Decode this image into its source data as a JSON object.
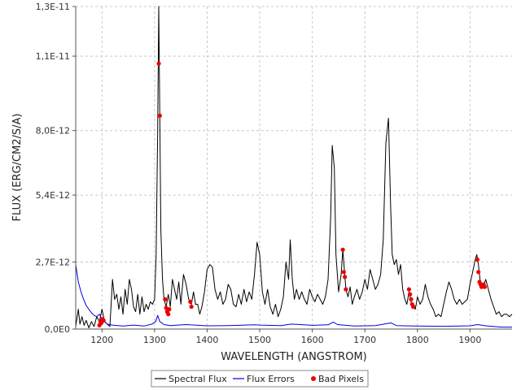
{
  "chart_data": {
    "type": "line",
    "xlabel": "WAVELENGTH (ANGSTROM)",
    "ylabel": "FLUX (ERG/CM2/S/A)",
    "xlim": [
      1150,
      1980
    ],
    "ylim": [
      0,
      1.3e-11
    ],
    "x_ticks": [
      1200,
      1300,
      1400,
      1500,
      1600,
      1700,
      1800,
      1900
    ],
    "x_tick_labels": [
      "1200",
      "1300",
      "1400",
      "1500",
      "1600",
      "1700",
      "1800",
      "1900"
    ],
    "y_ticks": [
      0,
      2.7e-12,
      5.4e-12,
      8e-12,
      1.1e-11,
      1.3e-11
    ],
    "y_tick_labels": [
      "0,0E0",
      "2,7E-12",
      "5,4E-12",
      "8,0E-12",
      "1,1E-11",
      "1,3E-11"
    ],
    "grid": true,
    "legend_position": "bottom-center",
    "series": [
      {
        "name": "Spectral Flux",
        "style": "line",
        "color": "#000000",
        "points": [
          [
            1150,
            1e-13
          ],
          [
            1155,
            8e-13
          ],
          [
            1158,
            2e-13
          ],
          [
            1162,
            5e-13
          ],
          [
            1166,
            1.5e-13
          ],
          [
            1170,
            3.5e-13
          ],
          [
            1175,
            5e-14
          ],
          [
            1180,
            3e-13
          ],
          [
            1185,
            1e-13
          ],
          [
            1190,
            5e-13
          ],
          [
            1195,
            3e-13
          ],
          [
            1200,
            8e-13
          ],
          [
            1205,
            3e-13
          ],
          [
            1210,
            2e-13
          ],
          [
            1215,
            1e-13
          ],
          [
            1220,
            2e-12
          ],
          [
            1224,
            1.2e-12
          ],
          [
            1228,
            1.4e-12
          ],
          [
            1232,
            8e-13
          ],
          [
            1236,
            1.3e-12
          ],
          [
            1240,
            6e-13
          ],
          [
            1244,
            1.6e-12
          ],
          [
            1248,
            1e-12
          ],
          [
            1252,
            2e-12
          ],
          [
            1256,
            1.6e-12
          ],
          [
            1260,
            9e-13
          ],
          [
            1264,
            7e-13
          ],
          [
            1268,
            1.4e-12
          ],
          [
            1272,
            6e-13
          ],
          [
            1276,
            1.3e-12
          ],
          [
            1280,
            7e-13
          ],
          [
            1284,
            1e-12
          ],
          [
            1288,
            8e-13
          ],
          [
            1292,
            1.1e-12
          ],
          [
            1296,
            1e-12
          ],
          [
            1300,
            1.2e-12
          ],
          [
            1303,
            3e-12
          ],
          [
            1306,
            8e-12
          ],
          [
            1308,
            1.3e-11
          ],
          [
            1310,
            8.5e-12
          ],
          [
            1312,
            4e-12
          ],
          [
            1315,
            2e-12
          ],
          [
            1318,
            1.2e-12
          ],
          [
            1322,
            9e-13
          ],
          [
            1326,
            1.4e-12
          ],
          [
            1330,
            9e-13
          ],
          [
            1334,
            2e-12
          ],
          [
            1338,
            1.6e-12
          ],
          [
            1342,
            1.2e-12
          ],
          [
            1346,
            1.9e-12
          ],
          [
            1350,
            1e-12
          ],
          [
            1355,
            2.2e-12
          ],
          [
            1360,
            1.8e-12
          ],
          [
            1365,
            1.2e-12
          ],
          [
            1370,
            1e-12
          ],
          [
            1374,
            1.5e-12
          ],
          [
            1378,
            1e-12
          ],
          [
            1382,
            1e-12
          ],
          [
            1386,
            6e-13
          ],
          [
            1390,
            9e-13
          ],
          [
            1395,
            1.5e-12
          ],
          [
            1400,
            2.4e-12
          ],
          [
            1405,
            2.6e-12
          ],
          [
            1410,
            2.5e-12
          ],
          [
            1415,
            1.6e-12
          ],
          [
            1420,
            1.2e-12
          ],
          [
            1425,
            1.5e-12
          ],
          [
            1430,
            1e-12
          ],
          [
            1435,
            1.2e-12
          ],
          [
            1440,
            1.8e-12
          ],
          [
            1445,
            1.6e-12
          ],
          [
            1450,
            1e-12
          ],
          [
            1455,
            9e-13
          ],
          [
            1460,
            1.4e-12
          ],
          [
            1465,
            1e-12
          ],
          [
            1470,
            1.6e-12
          ],
          [
            1475,
            1.1e-12
          ],
          [
            1480,
            1.5e-12
          ],
          [
            1485,
            1.2e-12
          ],
          [
            1490,
            2.2e-12
          ],
          [
            1495,
            3.5e-12
          ],
          [
            1500,
            3e-12
          ],
          [
            1505,
            1.5e-12
          ],
          [
            1510,
            1e-12
          ],
          [
            1515,
            1.6e-12
          ],
          [
            1520,
            9e-13
          ],
          [
            1525,
            6e-13
          ],
          [
            1530,
            1e-12
          ],
          [
            1535,
            5e-13
          ],
          [
            1540,
            8e-13
          ],
          [
            1545,
            1.3e-12
          ],
          [
            1550,
            2.7e-12
          ],
          [
            1555,
            2e-12
          ],
          [
            1558,
            3.6e-12
          ],
          [
            1562,
            2e-12
          ],
          [
            1566,
            1.2e-12
          ],
          [
            1570,
            1.6e-12
          ],
          [
            1575,
            1.2e-12
          ],
          [
            1580,
            1.5e-12
          ],
          [
            1585,
            1.2e-12
          ],
          [
            1590,
            1e-12
          ],
          [
            1595,
            1.6e-12
          ],
          [
            1600,
            1.3e-12
          ],
          [
            1605,
            1.1e-12
          ],
          [
            1610,
            1.4e-12
          ],
          [
            1615,
            1.2e-12
          ],
          [
            1620,
            1e-12
          ],
          [
            1625,
            1.3e-12
          ],
          [
            1630,
            2e-12
          ],
          [
            1635,
            4.5e-12
          ],
          [
            1638,
            7.4e-12
          ],
          [
            1642,
            6.5e-12
          ],
          [
            1645,
            3e-12
          ],
          [
            1650,
            1.5e-12
          ],
          [
            1655,
            2.2e-12
          ],
          [
            1658,
            3.2e-12
          ],
          [
            1661,
            2.4e-12
          ],
          [
            1664,
            1.6e-12
          ],
          [
            1668,
            1.3e-12
          ],
          [
            1672,
            1.7e-12
          ],
          [
            1676,
            1e-12
          ],
          [
            1680,
            1.3e-12
          ],
          [
            1685,
            1.6e-12
          ],
          [
            1690,
            1.2e-12
          ],
          [
            1695,
            1.5e-12
          ],
          [
            1700,
            2e-12
          ],
          [
            1705,
            1.6e-12
          ],
          [
            1710,
            2.4e-12
          ],
          [
            1715,
            2e-12
          ],
          [
            1720,
            1.6e-12
          ],
          [
            1725,
            1.8e-12
          ],
          [
            1730,
            2.2e-12
          ],
          [
            1735,
            3.6e-12
          ],
          [
            1740,
            7.5e-12
          ],
          [
            1745,
            8.5e-12
          ],
          [
            1749,
            5e-12
          ],
          [
            1752,
            3e-12
          ],
          [
            1756,
            2.6e-12
          ],
          [
            1760,
            2.8e-12
          ],
          [
            1764,
            2.2e-12
          ],
          [
            1768,
            2.6e-12
          ],
          [
            1772,
            1.6e-12
          ],
          [
            1776,
            1.2e-12
          ],
          [
            1780,
            1e-12
          ],
          [
            1784,
            1.5e-12
          ],
          [
            1788,
            1.1e-12
          ],
          [
            1792,
            9e-13
          ],
          [
            1796,
            8e-13
          ],
          [
            1800,
            1.3e-12
          ],
          [
            1805,
            1e-12
          ],
          [
            1810,
            1.2e-12
          ],
          [
            1815,
            1.8e-12
          ],
          [
            1820,
            1.3e-12
          ],
          [
            1825,
            1e-12
          ],
          [
            1830,
            8e-13
          ],
          [
            1835,
            5e-13
          ],
          [
            1840,
            6e-13
          ],
          [
            1845,
            5e-13
          ],
          [
            1850,
            1e-12
          ],
          [
            1855,
            1.5e-12
          ],
          [
            1860,
            1.9e-12
          ],
          [
            1865,
            1.6e-12
          ],
          [
            1870,
            1.2e-12
          ],
          [
            1875,
            1e-12
          ],
          [
            1880,
            1.2e-12
          ],
          [
            1885,
            1e-12
          ],
          [
            1890,
            1.1e-12
          ],
          [
            1895,
            1.2e-12
          ],
          [
            1900,
            1.8e-12
          ],
          [
            1905,
            2.3e-12
          ],
          [
            1910,
            2.8e-12
          ],
          [
            1913,
            3e-12
          ],
          [
            1916,
            2.6e-12
          ],
          [
            1920,
            1.8e-12
          ],
          [
            1925,
            1.7e-12
          ],
          [
            1930,
            2e-12
          ],
          [
            1935,
            1.6e-12
          ],
          [
            1940,
            1.2e-12
          ],
          [
            1945,
            9e-13
          ],
          [
            1950,
            6e-13
          ],
          [
            1955,
            7e-13
          ],
          [
            1960,
            5e-13
          ],
          [
            1965,
            6e-13
          ],
          [
            1970,
            6e-13
          ],
          [
            1975,
            5e-13
          ],
          [
            1980,
            6e-13
          ]
        ]
      },
      {
        "name": "Flux Errors",
        "style": "line",
        "color": "#0000dd",
        "points": [
          [
            1150,
            2.6e-12
          ],
          [
            1155,
            1.9e-12
          ],
          [
            1160,
            1.5e-12
          ],
          [
            1165,
            1.2e-12
          ],
          [
            1170,
            9.5e-13
          ],
          [
            1175,
            8e-13
          ],
          [
            1180,
            6.5e-13
          ],
          [
            1185,
            5.5e-13
          ],
          [
            1190,
            5e-13
          ],
          [
            1195,
            6e-13
          ],
          [
            1200,
            4e-13
          ],
          [
            1205,
            3e-13
          ],
          [
            1210,
            2e-13
          ],
          [
            1220,
            1.6e-13
          ],
          [
            1240,
            1.2e-13
          ],
          [
            1260,
            1.6e-13
          ],
          [
            1280,
            1.2e-13
          ],
          [
            1295,
            2e-13
          ],
          [
            1302,
            3e-13
          ],
          [
            1306,
            5.5e-13
          ],
          [
            1310,
            3e-13
          ],
          [
            1318,
            1.8e-13
          ],
          [
            1330,
            1.4e-13
          ],
          [
            1360,
            1.8e-13
          ],
          [
            1400,
            1.3e-13
          ],
          [
            1440,
            1.4e-13
          ],
          [
            1490,
            1.7e-13
          ],
          [
            1500,
            1.6e-13
          ],
          [
            1540,
            1.4e-13
          ],
          [
            1560,
            2e-13
          ],
          [
            1600,
            1.5e-13
          ],
          [
            1630,
            1.7e-13
          ],
          [
            1640,
            2.8e-13
          ],
          [
            1648,
            1.8e-13
          ],
          [
            1680,
            1.2e-13
          ],
          [
            1720,
            1.4e-13
          ],
          [
            1742,
            2.2e-13
          ],
          [
            1750,
            2.5e-13
          ],
          [
            1760,
            1.4e-13
          ],
          [
            1800,
            1.2e-13
          ],
          [
            1850,
            1.1e-13
          ],
          [
            1900,
            1.3e-13
          ],
          [
            1915,
            1.8e-13
          ],
          [
            1930,
            1.3e-13
          ],
          [
            1960,
            8e-14
          ],
          [
            1980,
            8e-14
          ]
        ]
      },
      {
        "name": "Bad Pixels",
        "style": "scatter",
        "color": "#ee0000",
        "points": [
          [
            1195,
            1.5e-13
          ],
          [
            1197,
            3e-13
          ],
          [
            1199,
            2.5e-13
          ],
          [
            1201,
            4e-13
          ],
          [
            1203,
            3.5e-13
          ],
          [
            1308,
            1.07e-11
          ],
          [
            1310,
            8.6e-12
          ],
          [
            1320,
            1.2e-12
          ],
          [
            1322,
            8.5e-13
          ],
          [
            1324,
            7e-13
          ],
          [
            1326,
            6e-13
          ],
          [
            1328,
            8e-13
          ],
          [
            1368,
            1.1e-12
          ],
          [
            1370,
            9e-13
          ],
          [
            1658,
            3.2e-12
          ],
          [
            1660,
            2.3e-12
          ],
          [
            1662,
            2.1e-12
          ],
          [
            1664,
            1.6e-12
          ],
          [
            1784,
            1.6e-12
          ],
          [
            1786,
            1.4e-12
          ],
          [
            1788,
            1.2e-12
          ],
          [
            1790,
            1e-12
          ],
          [
            1792,
            9e-13
          ],
          [
            1914,
            2.8e-12
          ],
          [
            1916,
            2.3e-12
          ],
          [
            1918,
            1.9e-12
          ],
          [
            1920,
            1.8e-12
          ],
          [
            1922,
            1.7e-12
          ],
          [
            1924,
            1.75e-12
          ],
          [
            1926,
            1.8e-12
          ],
          [
            1928,
            1.7e-12
          ]
        ]
      }
    ]
  }
}
